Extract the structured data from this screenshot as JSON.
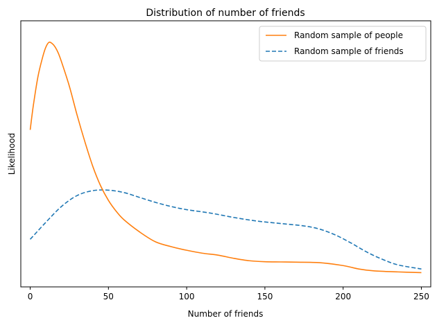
{
  "chart_data": {
    "type": "line",
    "title": "Distribution of number of friends",
    "xlabel": "Number of friends",
    "ylabel": "Likelihood",
    "xlim": [
      -6,
      256
    ],
    "ylim": [
      0,
      1
    ],
    "x_ticks": [
      0,
      50,
      100,
      150,
      200,
      250
    ],
    "y_ticks_shown": false,
    "grid": false,
    "legend_position": "top-right",
    "series": [
      {
        "name": "Random sample of people",
        "color": "#ff7f0e",
        "dash": "solid",
        "x": [
          0,
          2,
          5,
          8,
          10,
          12,
          14,
          16,
          18,
          20,
          25,
          30,
          35,
          40,
          45,
          50,
          55,
          60,
          70,
          80,
          90,
          100,
          110,
          120,
          130,
          140,
          150,
          160,
          170,
          185,
          200,
          210,
          220,
          235,
          250
        ],
        "y": [
          0.6,
          0.7,
          0.82,
          0.9,
          0.94,
          0.96,
          0.955,
          0.94,
          0.915,
          0.88,
          0.78,
          0.66,
          0.55,
          0.45,
          0.37,
          0.31,
          0.265,
          0.23,
          0.18,
          0.14,
          0.12,
          0.105,
          0.093,
          0.085,
          0.072,
          0.062,
          0.058,
          0.057,
          0.056,
          0.054,
          0.042,
          0.028,
          0.02,
          0.016,
          0.013
        ]
      },
      {
        "name": "Random sample of friends",
        "color": "#1f77b4",
        "dash": "dashed",
        "x": [
          0,
          10,
          20,
          30,
          40,
          50,
          60,
          70,
          80,
          90,
          100,
          115,
          130,
          145,
          160,
          175,
          185,
          195,
          205,
          215,
          225,
          235,
          250
        ],
        "y": [
          0.15,
          0.22,
          0.285,
          0.33,
          0.35,
          0.352,
          0.342,
          0.322,
          0.302,
          0.285,
          0.272,
          0.258,
          0.24,
          0.225,
          0.215,
          0.205,
          0.192,
          0.168,
          0.135,
          0.098,
          0.068,
          0.045,
          0.028
        ]
      }
    ]
  }
}
